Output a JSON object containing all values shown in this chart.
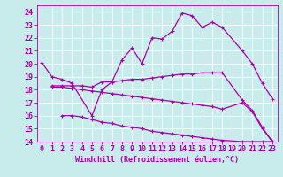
{
  "xlabel": "Windchill (Refroidissement éolien,°C)",
  "bg_color": "#c8ecec",
  "line_color": "#aa00aa",
  "grid_color": "#aadddd",
  "xlim": [
    -0.5,
    23.5
  ],
  "ylim": [
    14,
    24.5
  ],
  "yticks": [
    14,
    15,
    16,
    17,
    18,
    19,
    20,
    21,
    22,
    23,
    24
  ],
  "xticks": [
    0,
    1,
    2,
    3,
    4,
    5,
    6,
    7,
    8,
    9,
    10,
    11,
    12,
    13,
    14,
    15,
    16,
    17,
    18,
    19,
    20,
    21,
    22,
    23
  ],
  "line1_x": [
    0,
    1,
    2,
    3,
    5,
    6,
    7,
    8,
    9,
    10,
    11,
    12,
    13,
    14,
    15,
    16,
    17,
    18,
    20,
    21,
    22,
    23
  ],
  "line1_y": [
    20.1,
    19.0,
    18.8,
    18.5,
    16.0,
    18.0,
    18.6,
    20.3,
    21.2,
    20.0,
    22.0,
    21.9,
    22.5,
    23.9,
    23.7,
    22.8,
    23.2,
    22.8,
    21.0,
    20.0,
    18.5,
    17.3
  ],
  "line2_x": [
    1,
    2,
    3,
    4,
    5,
    6,
    7,
    8,
    9,
    10,
    11,
    12,
    13,
    14,
    15,
    16,
    17,
    18,
    20,
    21,
    22,
    23
  ],
  "line2_y": [
    18.3,
    18.3,
    18.3,
    18.3,
    18.2,
    18.6,
    18.6,
    18.7,
    18.8,
    18.8,
    18.9,
    19.0,
    19.1,
    19.2,
    19.2,
    19.3,
    19.3,
    19.3,
    17.2,
    16.4,
    15.1,
    14.0
  ],
  "line3_x": [
    1,
    2,
    3,
    4,
    5,
    6,
    7,
    8,
    9,
    10,
    11,
    12,
    13,
    14,
    15,
    16,
    17,
    18,
    20,
    21,
    22,
    23
  ],
  "line3_y": [
    18.2,
    18.2,
    18.1,
    18.0,
    17.9,
    17.8,
    17.7,
    17.6,
    17.5,
    17.4,
    17.3,
    17.2,
    17.1,
    17.0,
    16.9,
    16.8,
    16.7,
    16.5,
    17.0,
    16.3,
    15.0,
    14.0
  ],
  "line4_x": [
    2,
    3,
    4,
    5,
    6,
    7,
    8,
    9,
    10,
    11,
    12,
    13,
    14,
    15,
    16,
    17,
    18,
    20,
    21,
    22,
    23
  ],
  "line4_y": [
    16.0,
    16.0,
    15.9,
    15.7,
    15.5,
    15.4,
    15.2,
    15.1,
    15.0,
    14.8,
    14.7,
    14.6,
    14.5,
    14.4,
    14.3,
    14.2,
    14.1,
    14.0,
    14.0,
    14.0,
    14.0
  ],
  "marker": "+",
  "markersize": 3,
  "linewidth": 0.9,
  "tick_fontsize": 6,
  "xlabel_fontsize": 6
}
